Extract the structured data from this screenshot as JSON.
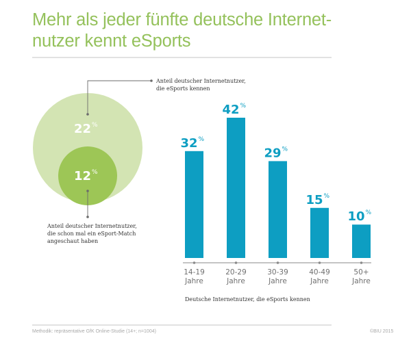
{
  "title_line1": "Mehr als jeder fünfte deutsche Internet-",
  "title_line2": "nutzer kennt eSports",
  "circles": {
    "outer": {
      "value": 22,
      "value_label": "22",
      "unit": "%",
      "color": "#d3e4b3",
      "annotation": [
        "Anteil deutscher Internetnutzer,",
        "die eSports kennen"
      ]
    },
    "inner": {
      "value": 12,
      "value_label": "12",
      "unit": "%",
      "color": "#9dc656",
      "annotation": [
        "Anteil deutscher Internetnutzer,",
        "die schon mal ein eSport-Match",
        "angeschaut haben"
      ]
    }
  },
  "chart_data": {
    "type": "bar",
    "title": "Mehr als jeder fünfte deutsche Internetnutzer kennt eSports",
    "categories": [
      "14-19 Jahre",
      "20-29 Jahre",
      "30-39 Jahre",
      "40-49 Jahre",
      "50+ Jahre"
    ],
    "category_lines": [
      [
        "14-19",
        "Jahre"
      ],
      [
        "20-29",
        "Jahre"
      ],
      [
        "30-39",
        "Jahre"
      ],
      [
        "40-49",
        "Jahre"
      ],
      [
        "50+",
        "Jahre"
      ]
    ],
    "values": [
      32,
      42,
      29,
      15,
      10
    ],
    "value_labels": [
      "32",
      "42",
      "29",
      "15",
      "10"
    ],
    "unit": "%",
    "xlabel": "Deutsche Internetnutzer, die eSports kennen",
    "ylabel": "",
    "ylim": [
      0,
      42
    ],
    "grid": false,
    "bar_color": "#0d9ec2",
    "label_color": "#0d9ec2",
    "axis_label_color": "#6f6f6f"
  },
  "footer": {
    "methodology": "Methodik: repräsentative GfK Online-Studie (14+; n=1004)",
    "copyright": "©BIU 2015"
  }
}
